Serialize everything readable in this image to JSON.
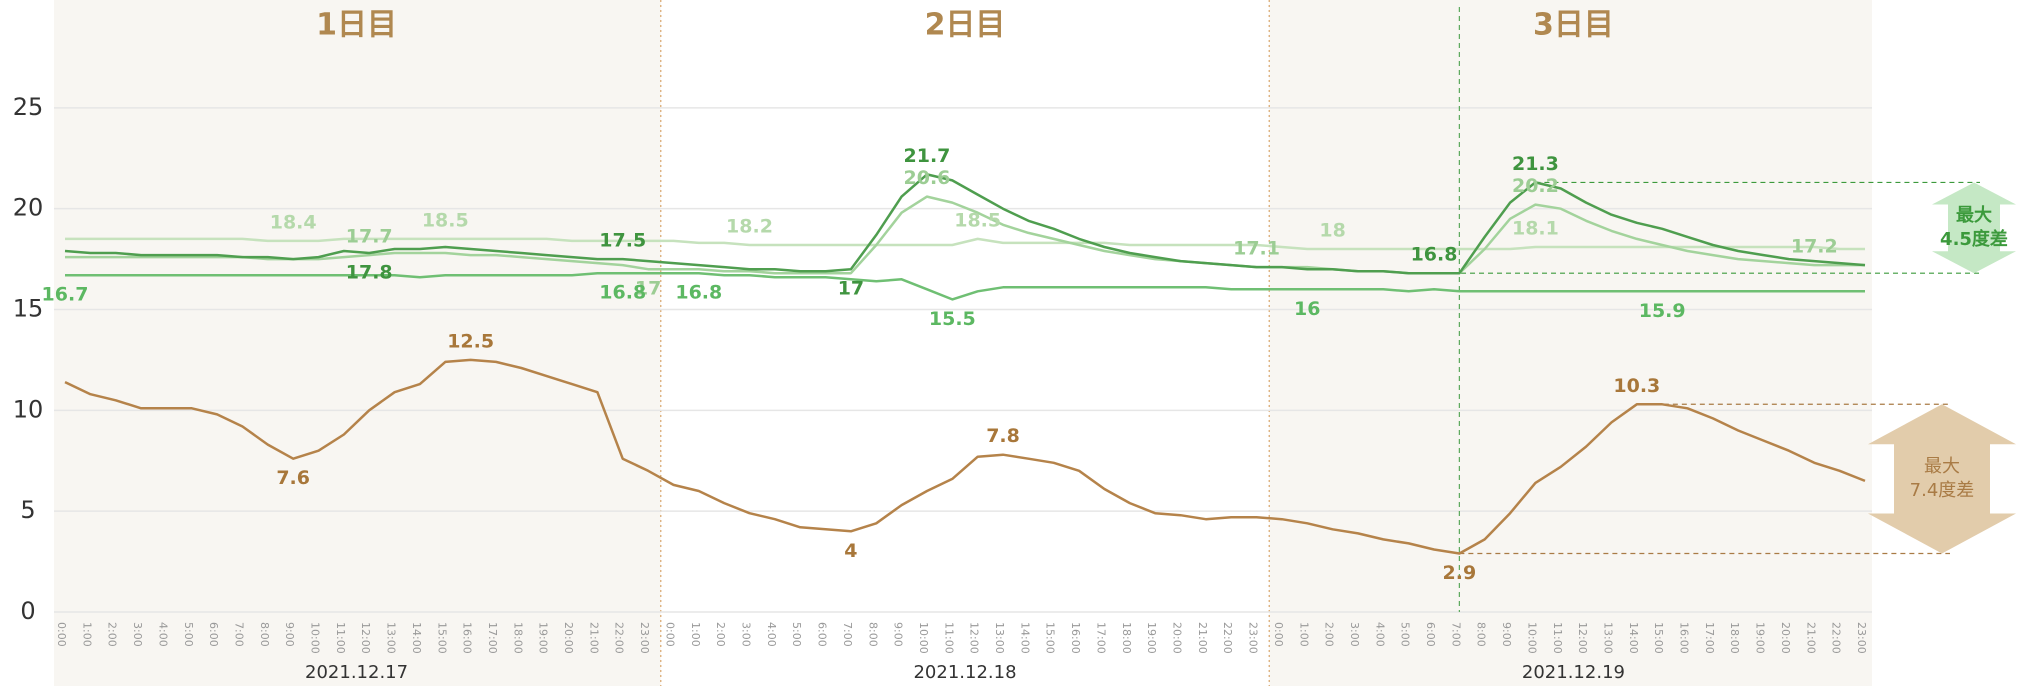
{
  "chart_data": {
    "type": "line",
    "ylim": [
      0,
      30
    ],
    "yticks": [
      0,
      5,
      10,
      15,
      20,
      25
    ],
    "grid": true,
    "days": [
      {
        "label": "1日目",
        "date": "2021.12.17"
      },
      {
        "label": "2日目",
        "date": "2021.12.18"
      },
      {
        "label": "3日目",
        "date": "2021.12.19"
      }
    ],
    "categories": [
      "0:00",
      "1:00",
      "2:00",
      "3:00",
      "4:00",
      "5:00",
      "6:00",
      "7:00",
      "8:00",
      "9:00",
      "10:00",
      "11:00",
      "12:00",
      "13:00",
      "14:00",
      "15:00",
      "16:00",
      "17:00",
      "18:00",
      "19:00",
      "20:00",
      "21:00",
      "22:00",
      "23:00",
      "0:00",
      "1:00",
      "2:00",
      "3:00",
      "4:00",
      "5:00",
      "6:00",
      "7:00",
      "8:00",
      "9:00",
      "10:00",
      "11:00",
      "12:00",
      "13:00",
      "14:00",
      "15:00",
      "16:00",
      "17:00",
      "18:00",
      "19:00",
      "20:00",
      "21:00",
      "22:00",
      "23:00",
      "0:00",
      "1:00",
      "2:00",
      "3:00",
      "4:00",
      "5:00",
      "6:00",
      "7:00",
      "8:00",
      "9:00",
      "10:00",
      "11:00",
      "12:00",
      "13:00",
      "14:00",
      "15:00",
      "16:00",
      "17:00",
      "18:00",
      "19:00",
      "20:00",
      "21:00",
      "22:00",
      "23:00"
    ],
    "series": [
      {
        "color": "#c6e2bd",
        "label_color": "#b5d9ab",
        "labeled": [
          9,
          15,
          27,
          36,
          50,
          58
        ],
        "values": [
          18.5,
          18.5,
          18.5,
          18.5,
          18.5,
          18.5,
          18.5,
          18.5,
          18.4,
          18.4,
          18.4,
          18.5,
          18.5,
          18.5,
          18.5,
          18.5,
          18.5,
          18.5,
          18.5,
          18.5,
          18.4,
          18.4,
          18.4,
          18.4,
          18.4,
          18.3,
          18.3,
          18.2,
          18.2,
          18.2,
          18.2,
          18.2,
          18.2,
          18.2,
          18.2,
          18.2,
          18.5,
          18.3,
          18.3,
          18.3,
          18.3,
          18.3,
          18.2,
          18.2,
          18.2,
          18.2,
          18.2,
          18.2,
          18.1,
          18.0,
          18.0,
          18.0,
          18.0,
          18.0,
          18.0,
          18.0,
          18.0,
          18.0,
          18.1,
          18.1,
          18.1,
          18.1,
          18.1,
          18.1,
          18.1,
          18.1,
          18.1,
          18.1,
          18.1,
          18.1,
          18.0,
          18.0
        ]
      },
      {
        "color": "#a3d39c",
        "label_color": "#9ccd94",
        "labeled": [
          12,
          23,
          34,
          47,
          58,
          69
        ],
        "values": [
          17.6,
          17.6,
          17.6,
          17.6,
          17.6,
          17.6,
          17.6,
          17.6,
          17.5,
          17.5,
          17.5,
          17.6,
          17.7,
          17.8,
          17.8,
          17.8,
          17.7,
          17.7,
          17.6,
          17.5,
          17.4,
          17.3,
          17.2,
          17.0,
          17.0,
          17.0,
          16.9,
          16.9,
          16.8,
          16.8,
          16.8,
          16.8,
          18.2,
          19.8,
          20.6,
          20.3,
          19.8,
          19.2,
          18.8,
          18.5,
          18.2,
          17.9,
          17.7,
          17.5,
          17.4,
          17.3,
          17.2,
          17.1,
          17.1,
          17.1,
          17.0,
          16.9,
          16.9,
          16.8,
          16.8,
          16.8,
          18.0,
          19.5,
          20.2,
          20.0,
          19.4,
          18.9,
          18.5,
          18.2,
          17.9,
          17.7,
          17.5,
          17.4,
          17.3,
          17.2,
          17.2,
          17.2
        ]
      },
      {
        "color": "#6fbf73",
        "label_color": "#5cb862",
        "label_side": "below",
        "labeled": [
          0,
          22,
          25,
          35,
          49,
          63
        ],
        "values": [
          16.7,
          16.7,
          16.7,
          16.7,
          16.7,
          16.7,
          16.7,
          16.7,
          16.7,
          16.7,
          16.7,
          16.7,
          16.7,
          16.7,
          16.6,
          16.7,
          16.7,
          16.7,
          16.7,
          16.7,
          16.7,
          16.8,
          16.8,
          16.8,
          16.8,
          16.8,
          16.7,
          16.7,
          16.6,
          16.6,
          16.6,
          16.5,
          16.4,
          16.5,
          16.0,
          15.5,
          15.9,
          16.1,
          16.1,
          16.1,
          16.1,
          16.1,
          16.1,
          16.1,
          16.1,
          16.1,
          16.0,
          16.0,
          16.0,
          16.0,
          16.0,
          16.0,
          16.0,
          15.9,
          16.0,
          15.9,
          15.9,
          15.9,
          15.9,
          15.9,
          15.9,
          15.9,
          15.9,
          15.9,
          15.9,
          15.9,
          15.9,
          15.9,
          15.9,
          15.9,
          15.9,
          15.9
        ]
      },
      {
        "color": "#4f9e4f",
        "label_color": "#3f943f",
        "labeled": [
          12,
          22,
          31,
          34,
          54,
          58
        ],
        "values": [
          17.9,
          17.8,
          17.8,
          17.7,
          17.7,
          17.7,
          17.7,
          17.6,
          17.6,
          17.5,
          17.6,
          17.9,
          17.8,
          18.0,
          18.0,
          18.1,
          18.0,
          17.9,
          17.8,
          17.7,
          17.6,
          17.5,
          17.5,
          17.4,
          17.3,
          17.2,
          17.1,
          17.0,
          17.0,
          16.9,
          16.9,
          17.0,
          18.7,
          20.6,
          21.7,
          21.4,
          20.7,
          20.0,
          19.4,
          19.0,
          18.5,
          18.1,
          17.8,
          17.6,
          17.4,
          17.3,
          17.2,
          17.1,
          17.1,
          17.0,
          17.0,
          16.9,
          16.9,
          16.8,
          16.8,
          16.8,
          18.6,
          20.3,
          21.3,
          21.0,
          20.3,
          19.7,
          19.3,
          19.0,
          18.6,
          18.2,
          17.9,
          17.7,
          17.5,
          17.4,
          17.3,
          17.2
        ]
      },
      {
        "color": "#b5834a",
        "label_color": "#a8773a",
        "labeled": [
          9,
          16,
          31,
          37,
          55,
          62
        ],
        "values": [
          11.4,
          10.8,
          10.5,
          10.1,
          10.1,
          10.1,
          9.8,
          9.2,
          8.3,
          7.6,
          8.0,
          8.8,
          10.0,
          10.9,
          11.3,
          12.4,
          12.5,
          12.4,
          12.1,
          11.7,
          11.3,
          10.9,
          7.6,
          7.0,
          6.3,
          6.0,
          5.4,
          4.9,
          4.6,
          4.2,
          4.1,
          4.0,
          4.4,
          5.3,
          6.0,
          6.6,
          7.7,
          7.8,
          7.6,
          7.4,
          7.0,
          6.1,
          5.4,
          4.9,
          4.8,
          4.6,
          4.7,
          4.7,
          4.6,
          4.4,
          4.1,
          3.9,
          3.6,
          3.4,
          3.1,
          2.9,
          3.6,
          4.9,
          6.4,
          7.2,
          8.2,
          9.4,
          10.3,
          10.3,
          10.1,
          9.6,
          9.0,
          8.5,
          8.0,
          7.4,
          7.0,
          6.5
        ]
      }
    ],
    "marker_index": 55,
    "marker_color": "#5aa85a",
    "annotations": [
      {
        "series": 3,
        "low_index": 54,
        "high_index": 58,
        "lines": [
          "最大",
          "4.5度差"
        ],
        "color": "#3c9a3c",
        "fill": "#c5e8c5"
      },
      {
        "series": 4,
        "low_index": 55,
        "high_index": 62,
        "lines": [
          "最大",
          "7.4度差"
        ],
        "color": "#a97b45",
        "fill": "#e2ccab"
      }
    ]
  }
}
